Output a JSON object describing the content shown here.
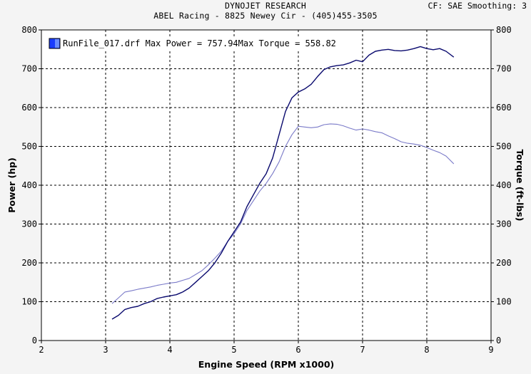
{
  "header": {
    "line1": "DYNOJET RESEARCH",
    "line2": "ABEL Racing - 8825 Newey Cir - (405)455-3505",
    "right": "CF: SAE  Smoothing: 3"
  },
  "colors": {
    "power": "#0a0a6e",
    "torque": "#7a7ac8",
    "legend_swatch": "#1a3cff",
    "grid": "#000000",
    "background": "#ffffff"
  },
  "chart_data": {
    "type": "line",
    "xlabel": "Engine Speed (RPM x1000)",
    "ylabel_left": "Power (hp)",
    "ylabel_right": "Torque (ft-lbs)",
    "xlim": [
      2,
      9
    ],
    "ylim": [
      0,
      800
    ],
    "x_ticks": [
      "2",
      "3",
      "4",
      "5",
      "6",
      "7",
      "8",
      "9"
    ],
    "y_ticks": [
      "0",
      "100",
      "200",
      "300",
      "400",
      "500",
      "600",
      "700",
      "800"
    ],
    "grid": true,
    "legend": {
      "placement": "top-left",
      "text": "RunFile_017.drf Max Power = 757.94Max Torque = 558.82"
    },
    "series": [
      {
        "name": "Power",
        "x": [
          3.1,
          3.2,
          3.3,
          3.4,
          3.5,
          3.6,
          3.7,
          3.8,
          3.9,
          4.0,
          4.1,
          4.2,
          4.3,
          4.4,
          4.5,
          4.6,
          4.7,
          4.8,
          4.9,
          5.0,
          5.1,
          5.2,
          5.3,
          5.4,
          5.5,
          5.6,
          5.7,
          5.8,
          5.9,
          6.0,
          6.1,
          6.2,
          6.3,
          6.4,
          6.5,
          6.6,
          6.7,
          6.8,
          6.9,
          7.0,
          7.1,
          7.2,
          7.3,
          7.4,
          7.5,
          7.6,
          7.7,
          7.8,
          7.9,
          8.0,
          8.1,
          8.2,
          8.3,
          8.42
        ],
        "values": [
          55,
          65,
          80,
          85,
          88,
          95,
          100,
          108,
          112,
          115,
          118,
          125,
          135,
          150,
          165,
          180,
          200,
          225,
          255,
          280,
          305,
          345,
          375,
          405,
          430,
          470,
          530,
          590,
          625,
          640,
          648,
          660,
          680,
          698,
          705,
          708,
          710,
          715,
          722,
          718,
          735,
          745,
          748,
          750,
          747,
          746,
          748,
          752,
          757,
          752,
          749,
          752,
          745,
          730
        ]
      },
      {
        "name": "Torque",
        "x": [
          3.1,
          3.2,
          3.3,
          3.4,
          3.5,
          3.6,
          3.7,
          3.8,
          3.9,
          4.0,
          4.1,
          4.2,
          4.3,
          4.4,
          4.5,
          4.6,
          4.7,
          4.8,
          4.9,
          5.0,
          5.1,
          5.2,
          5.3,
          5.4,
          5.5,
          5.6,
          5.7,
          5.8,
          5.9,
          6.0,
          6.1,
          6.2,
          6.3,
          6.4,
          6.5,
          6.6,
          6.7,
          6.8,
          6.9,
          7.0,
          7.1,
          7.2,
          7.3,
          7.4,
          7.5,
          7.6,
          7.7,
          7.8,
          7.9,
          8.0,
          8.1,
          8.2,
          8.3,
          8.42
        ],
        "values": [
          95,
          110,
          125,
          128,
          132,
          135,
          138,
          142,
          145,
          148,
          150,
          155,
          160,
          170,
          180,
          195,
          212,
          230,
          255,
          275,
          300,
          335,
          360,
          385,
          405,
          430,
          460,
          500,
          530,
          552,
          550,
          548,
          550,
          556,
          558,
          557,
          553,
          547,
          542,
          545,
          542,
          538,
          535,
          527,
          520,
          512,
          508,
          506,
          503,
          497,
          490,
          484,
          475,
          455
        ]
      }
    ]
  }
}
